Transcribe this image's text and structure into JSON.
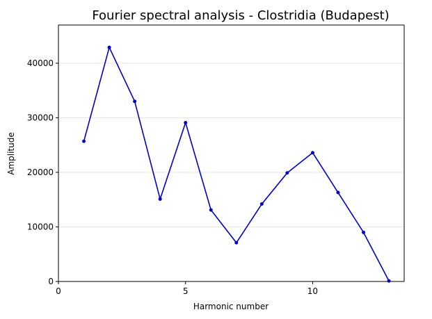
{
  "chart_data": {
    "type": "line",
    "title": "Fourier spectral analysis - Clostridia (Budapest)",
    "xlabel": "Harmonic number",
    "ylabel": "Amplitude",
    "xlim": [
      0,
      13.6
    ],
    "ylim": [
      0,
      47000
    ],
    "xticks": [
      0,
      5,
      10
    ],
    "yticks": [
      0,
      10000,
      20000,
      30000,
      40000
    ],
    "grid": "horizontal",
    "legend": "none",
    "series": [
      {
        "color": "#0000cc",
        "x": [
          1,
          2,
          3,
          4,
          5,
          6,
          7,
          8,
          9,
          10,
          11,
          12,
          13
        ],
        "y": [
          25700,
          42900,
          33000,
          15100,
          29100,
          13100,
          7100,
          14200,
          19900,
          23600,
          16300,
          9000,
          100
        ]
      }
    ]
  }
}
